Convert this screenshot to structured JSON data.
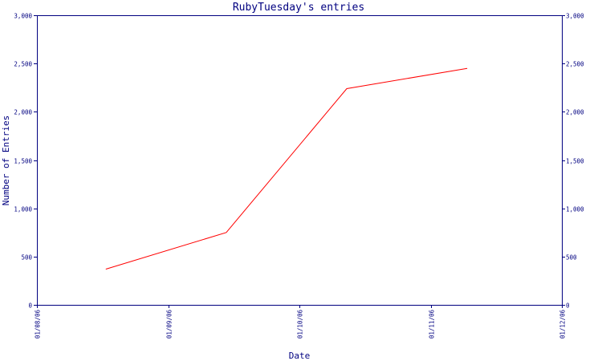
{
  "chart_data": {
    "type": "line",
    "title": "RubyTuesday's entries",
    "xlabel": "Date",
    "ylabel": "Number of Entries",
    "x_ticks": [
      "01/08/06",
      "01/09/06",
      "01/10/06",
      "01/11/06",
      "01/12/06"
    ],
    "y_ticks": [
      "0",
      "500",
      "1,000",
      "1,500",
      "2,000",
      "2,500",
      "3,000"
    ],
    "ylim": [
      0,
      3000
    ],
    "xlim": [
      "2006-08-01",
      "2006-12-01"
    ],
    "y_axis_both_sides": true,
    "grid": false,
    "series": [
      {
        "color": "#ff0000",
        "points": [
          {
            "x": "2006-08-17",
            "y": 370
          },
          {
            "x": "2006-09-14",
            "y": 750
          },
          {
            "x": "2006-10-12",
            "y": 2240
          },
          {
            "x": "2006-11-09",
            "y": 2450
          }
        ]
      }
    ]
  }
}
